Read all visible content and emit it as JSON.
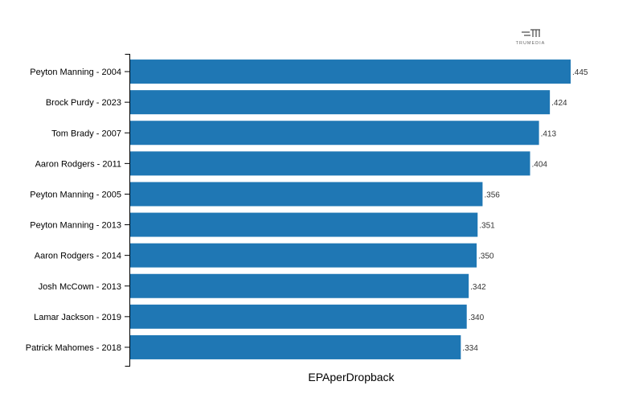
{
  "chart_data": {
    "type": "bar",
    "orientation": "horizontal",
    "categories": [
      "Peyton Manning - 2004",
      "Brock Purdy - 2023",
      "Tom Brady - 2007",
      "Aaron Rodgers - 2011",
      "Peyton Manning - 2005",
      "Peyton Manning - 2013",
      "Aaron Rodgers - 2014",
      "Josh McCown - 2013",
      "Lamar Jackson - 2019",
      "Patrick Mahomes - 2018"
    ],
    "values": [
      0.445,
      0.424,
      0.413,
      0.404,
      0.356,
      0.351,
      0.35,
      0.342,
      0.34,
      0.334
    ],
    "labels": [
      ".445",
      ".424",
      ".413",
      ".404",
      ".356",
      ".351",
      ".350",
      ".342",
      ".340",
      ".334"
    ],
    "title": "",
    "xlabel": "EPAperDropback",
    "ylabel": "",
    "xlim": [
      0,
      0.445
    ],
    "bar_color": "#1f77b4",
    "grid": false
  },
  "logo": {
    "text": "TRUMEDIA"
  }
}
